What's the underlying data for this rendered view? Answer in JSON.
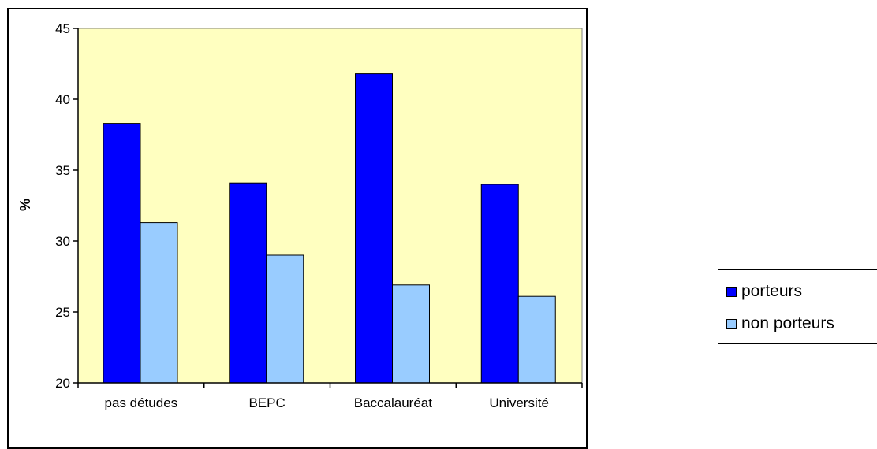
{
  "chart_data": {
    "type": "bar",
    "title": "",
    "xlabel": "",
    "ylabel": "%",
    "ylim": [
      20,
      45
    ],
    "yticks": [
      20,
      25,
      30,
      35,
      40,
      45
    ],
    "grid": false,
    "plot_background": "#FFFFC0",
    "legend_position": "right",
    "categories": [
      "pas détudes",
      "BEPC",
      "Baccalauréat",
      "Université"
    ],
    "series": [
      {
        "name": "porteurs",
        "color": "#0000FF",
        "values": [
          38.3,
          34.1,
          41.8,
          34.0
        ]
      },
      {
        "name": "non porteurs",
        "color": "#99CCFF",
        "values": [
          31.3,
          29.0,
          26.9,
          26.1
        ]
      }
    ]
  }
}
